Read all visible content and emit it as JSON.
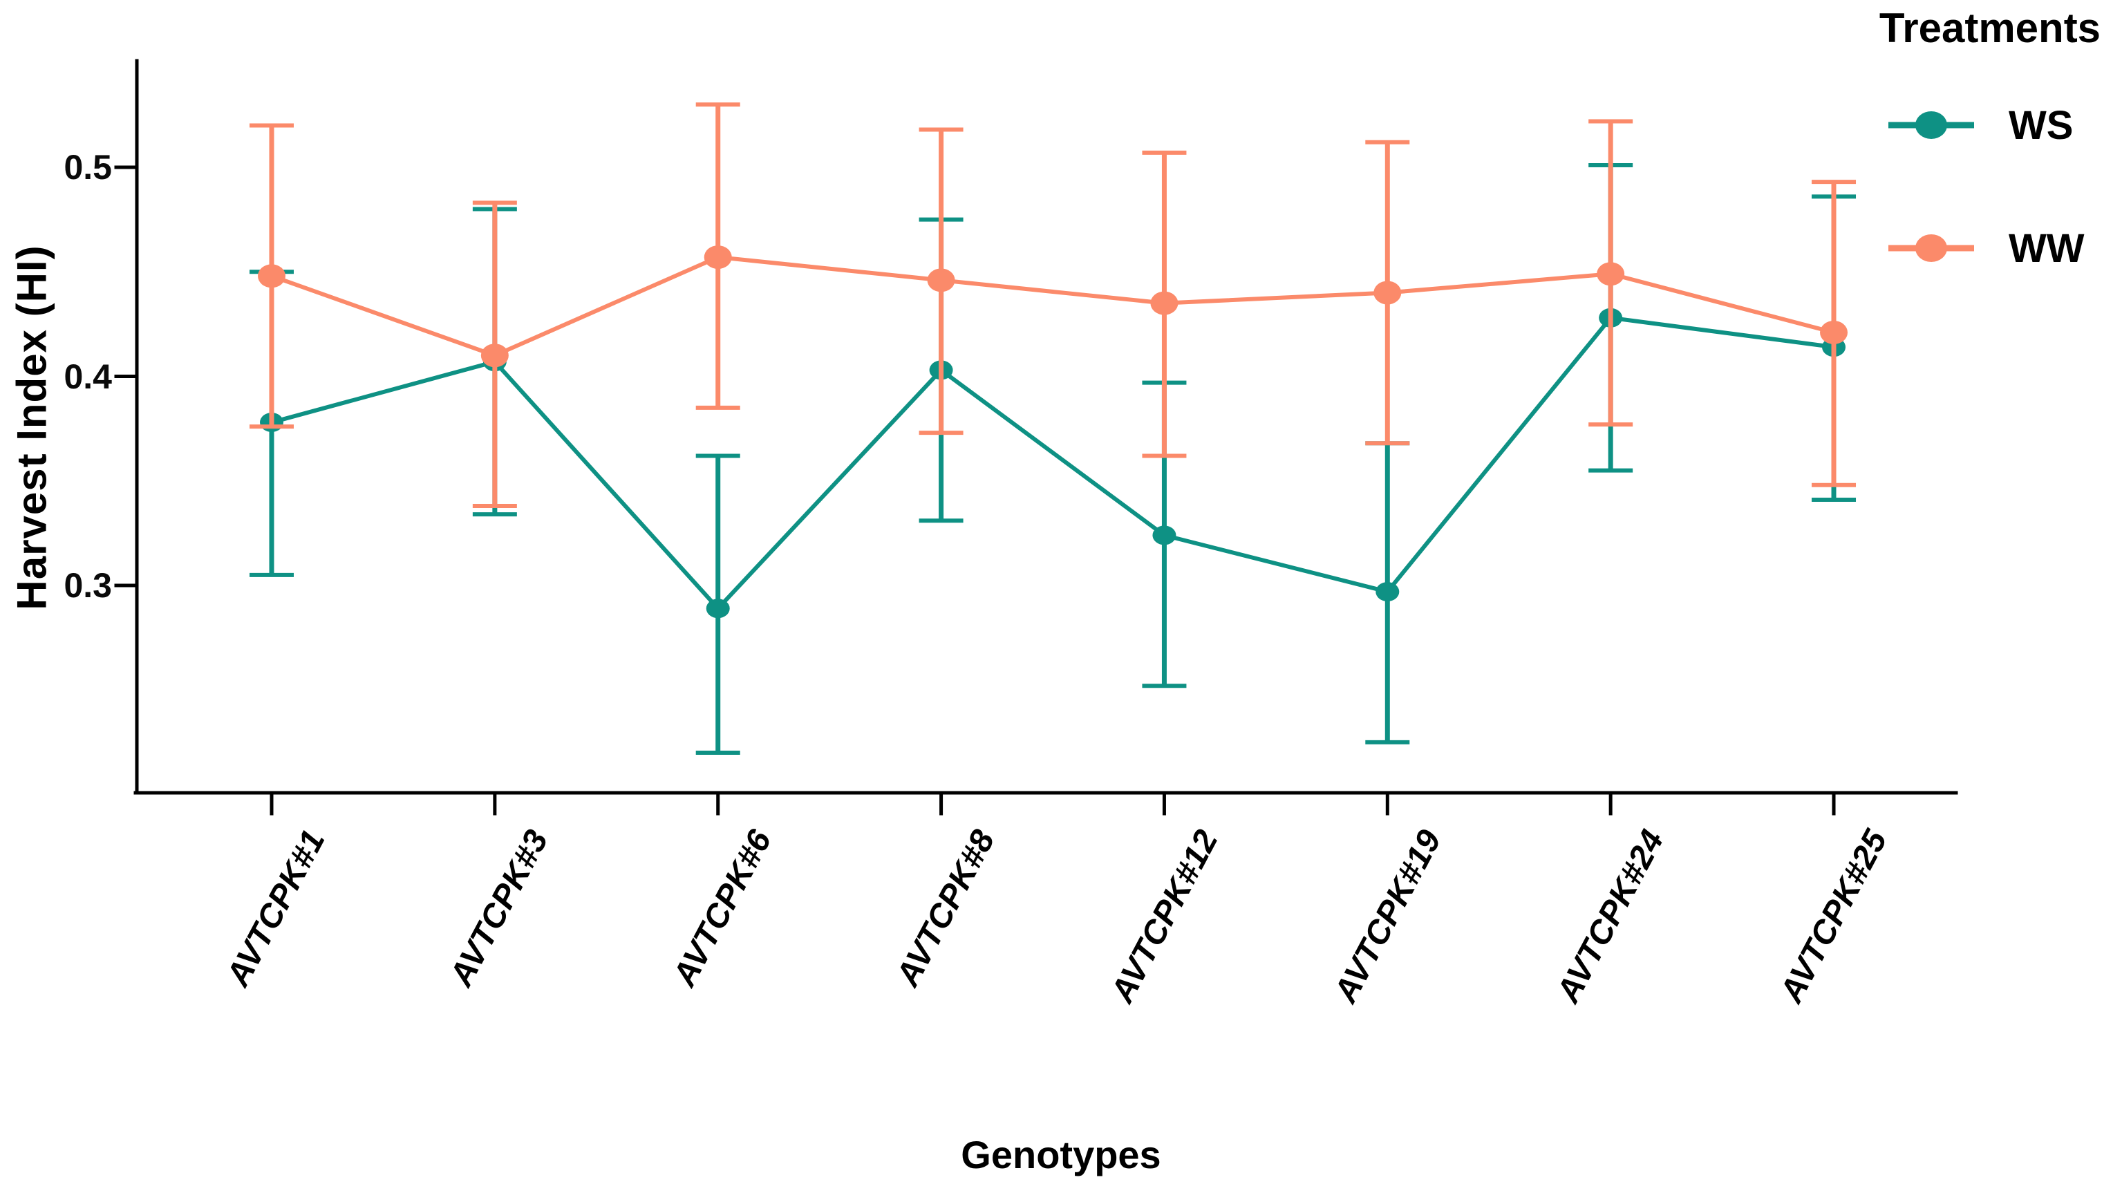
{
  "figure": {
    "x_axis_title": "Genotypes",
    "y_axis_title": "Harvest Index (HI)"
  },
  "legend": {
    "title": "Treatments",
    "entries": [
      {
        "label": "WS",
        "color": "#0e9184"
      },
      {
        "label": "WW",
        "color": "#fb8a6a"
      }
    ]
  },
  "chart_data": {
    "type": "line",
    "title": "",
    "xlabel": "Genotypes",
    "ylabel": "Harvest Index (HI)",
    "categories": [
      "AVTCPK#1",
      "AVTCPK#3",
      "AVTCPK#6",
      "AVTCPK#8",
      "AVTCPK#12",
      "AVTCPK#19",
      "AVTCPK#24",
      "AVTCPK#25"
    ],
    "y_ticks": [
      0.5,
      0.4,
      0.3
    ],
    "y_tick_labels": [
      "0.5",
      "0.4",
      "0.3"
    ],
    "ylim": [
      0.2,
      0.55
    ],
    "grid": false,
    "error_bars": true,
    "legend_position": "top-right",
    "legend_title": "Treatments",
    "axis_color": "#000000",
    "series": [
      {
        "name": "WS",
        "color": "#0e9184",
        "values": [
          0.378,
          0.407,
          0.289,
          0.403,
          0.324,
          0.297,
          0.428,
          0.414
        ],
        "error_low": [
          0.305,
          0.334,
          0.22,
          0.331,
          0.252,
          0.225,
          0.355,
          0.341
        ],
        "error_high": [
          0.45,
          0.48,
          0.362,
          0.475,
          0.397,
          0.368,
          0.501,
          0.486
        ]
      },
      {
        "name": "WW",
        "color": "#fb8a6a",
        "values": [
          0.448,
          0.41,
          0.457,
          0.446,
          0.435,
          0.44,
          0.449,
          0.421
        ],
        "error_low": [
          0.376,
          0.338,
          0.385,
          0.373,
          0.362,
          0.368,
          0.377,
          0.348
        ],
        "error_high": [
          0.52,
          0.483,
          0.53,
          0.518,
          0.507,
          0.512,
          0.522,
          0.493
        ]
      }
    ]
  }
}
